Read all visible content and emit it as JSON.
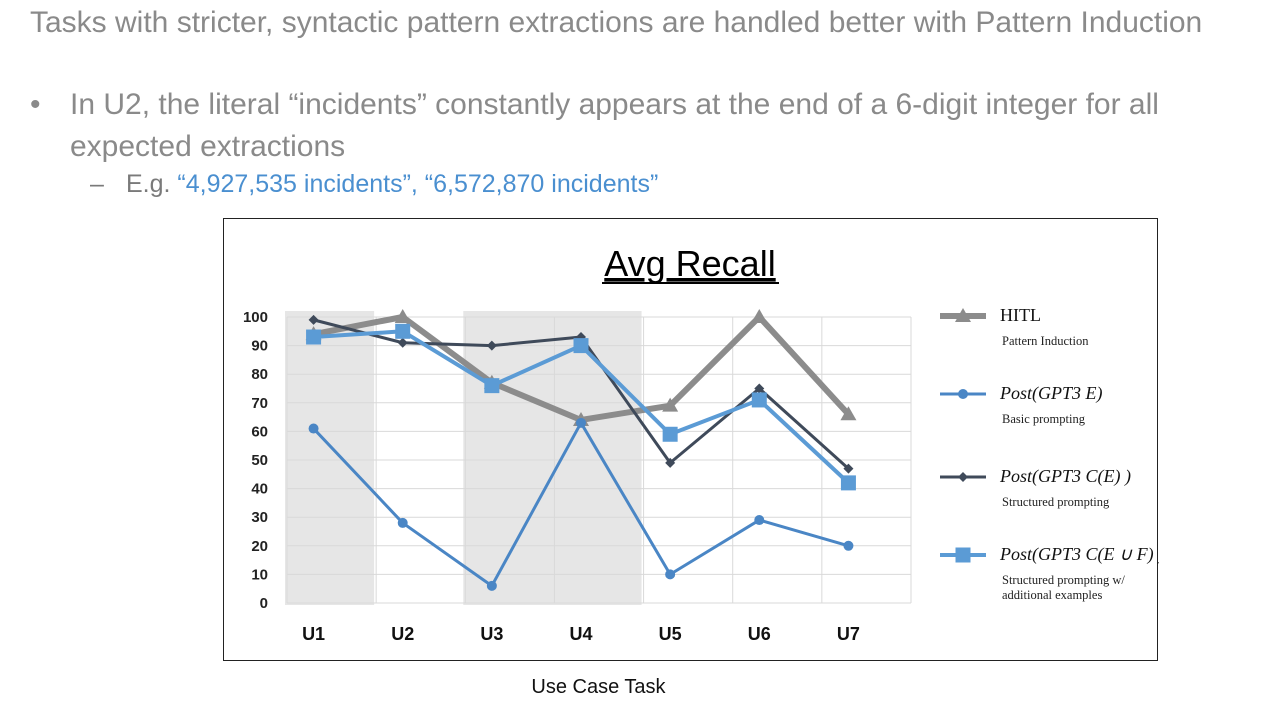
{
  "slide": {
    "heading": "Tasks with stricter, syntactic pattern extractions are handled better with Pattern Induction",
    "bullet_marker": "•",
    "bullet_text": "In U2, the literal “incidents” constantly appears at the end of a 6-digit integer for all expected extractions",
    "sub_dash": "–",
    "sub_prefix": "E.g. ",
    "sub_example": "“4,927,535 incidents”, “6,572,870 incidents”",
    "caption": "Use Case Task"
  },
  "colors": {
    "hitl": "#8c8c8c",
    "basic": "#4a86c5",
    "structured": "#3f4a5a",
    "structured_examples": "#5b9bd5",
    "grid": "#d9d9d9",
    "shade": "#e6e6e6"
  },
  "chart_data": {
    "type": "line",
    "title": "Avg Recall",
    "xlabel": "Use Case Task",
    "ylabel": "",
    "categories": [
      "U1",
      "U2",
      "U3",
      "U4",
      "U5",
      "U6",
      "U7"
    ],
    "ylim": [
      0,
      100
    ],
    "yticks": [
      0,
      10,
      20,
      30,
      40,
      50,
      60,
      70,
      80,
      90,
      100
    ],
    "grid": true,
    "legend_position": "right",
    "shaded_categories": [
      "U1",
      "U3",
      "U4"
    ],
    "series": [
      {
        "name": "HITL",
        "sublabel": "Pattern Induction",
        "marker": "triangle",
        "color_key": "hitl",
        "values": [
          94,
          100,
          77,
          64,
          69,
          100,
          66
        ]
      },
      {
        "name": "Post(GPT3 E)",
        "sublabel": "Basic prompting",
        "marker": "circle",
        "color_key": "basic",
        "values": [
          61,
          28,
          6,
          63,
          10,
          29,
          20
        ]
      },
      {
        "name": "Post(GPT3 C(E) )",
        "sublabel": "Structured prompting",
        "marker": "diamond",
        "color_key": "structured",
        "values": [
          99,
          91,
          90,
          93,
          49,
          75,
          47
        ]
      },
      {
        "name": "Post(GPT3 C(E ∪ F) )",
        "sublabel": "Structured prompting w/ additional examples",
        "marker": "square",
        "color_key": "structured_examples",
        "values": [
          93,
          95,
          76,
          90,
          59,
          71,
          42
        ]
      }
    ]
  }
}
